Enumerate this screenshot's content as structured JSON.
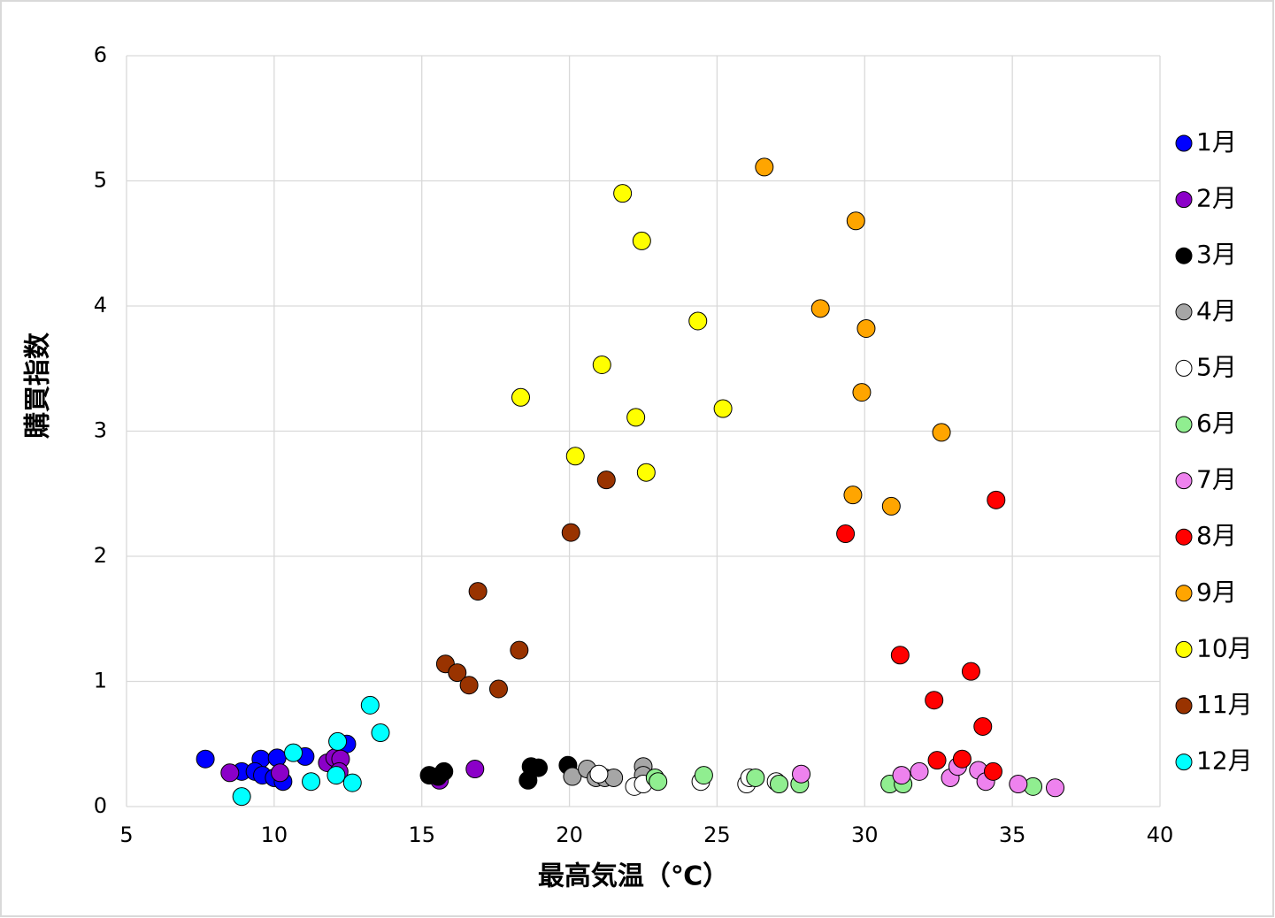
{
  "chart_data": {
    "type": "scatter",
    "x_label": "最高気温（℃）",
    "y_label": "購買指数",
    "xlim": [
      5,
      40
    ],
    "xticks": [
      5,
      10,
      15,
      20,
      25,
      30,
      35,
      40
    ],
    "ylim": [
      0,
      6
    ],
    "yticks": [
      0,
      1,
      2,
      3,
      4,
      5,
      6
    ],
    "grid": true,
    "legend": "right",
    "series": [
      {
        "name": "1月",
        "color": "#0000ff",
        "x": [
          7.67,
          8.9,
          9.55,
          9.35,
          9.6,
          10.1,
          10.0,
          10.3,
          11.05,
          12.46
        ],
        "values": [
          0.38,
          0.28,
          0.38,
          0.28,
          0.25,
          0.39,
          0.23,
          0.2,
          0.4,
          0.5
        ]
      },
      {
        "name": "2月",
        "color": "#8b00c8",
        "x": [
          8.5,
          10.2,
          11.8,
          12.05,
          12.25,
          12.2,
          15.6,
          16.8
        ],
        "values": [
          0.27,
          0.27,
          0.35,
          0.39,
          0.38,
          0.28,
          0.21,
          0.3
        ]
      },
      {
        "name": "3月",
        "color": "#000000",
        "x": [
          15.25,
          15.55,
          15.75,
          18.6,
          18.7,
          18.95,
          19.95
        ],
        "values": [
          0.25,
          0.24,
          0.28,
          0.21,
          0.32,
          0.31,
          0.33
        ]
      },
      {
        "name": "4月",
        "color": "#a6a6a6",
        "x": [
          20.1,
          20.6,
          20.9,
          21.2,
          21.5,
          22.5,
          22.5
        ],
        "values": [
          0.24,
          0.3,
          0.23,
          0.23,
          0.23,
          0.32,
          0.25
        ]
      },
      {
        "name": "5月",
        "color": "#ffffff",
        "x": [
          21.0,
          22.2,
          22.5,
          24.45,
          26.0,
          26.1,
          27.0
        ],
        "values": [
          0.26,
          0.16,
          0.18,
          0.2,
          0.18,
          0.23,
          0.2
        ]
      },
      {
        "name": "6月",
        "color": "#90ee90",
        "x": [
          22.9,
          23.0,
          24.55,
          26.3,
          27.1,
          27.8,
          30.85,
          31.3,
          35.7
        ],
        "values": [
          0.23,
          0.2,
          0.25,
          0.23,
          0.18,
          0.18,
          0.18,
          0.18,
          0.16
        ]
      },
      {
        "name": "7月",
        "color": "#ee82ee",
        "x": [
          27.85,
          31.25,
          31.85,
          32.9,
          33.15,
          33.85,
          34.1,
          35.2,
          36.45
        ],
        "values": [
          0.26,
          0.25,
          0.28,
          0.23,
          0.32,
          0.29,
          0.2,
          0.18,
          0.15
        ]
      },
      {
        "name": "8月",
        "color": "#ff0000",
        "x": [
          29.35,
          34.45,
          31.2,
          33.6,
          32.35,
          34.0,
          32.45,
          33.3,
          34.35
        ],
        "values": [
          2.18,
          2.45,
          1.21,
          1.08,
          0.85,
          0.64,
          0.37,
          0.38,
          0.28
        ]
      },
      {
        "name": "9月",
        "color": "#ffa500",
        "x": [
          26.6,
          29.7,
          28.5,
          30.05,
          29.9,
          32.6,
          29.6,
          30.9
        ],
        "values": [
          5.11,
          4.68,
          3.98,
          3.82,
          3.31,
          2.99,
          2.49,
          2.4
        ]
      },
      {
        "name": "10月",
        "color": "#ffff00",
        "x": [
          21.8,
          22.45,
          24.35,
          21.1,
          18.35,
          25.2,
          22.25,
          20.2,
          22.6
        ],
        "values": [
          4.9,
          4.52,
          3.88,
          3.53,
          3.27,
          3.18,
          3.11,
          2.8,
          2.67
        ]
      },
      {
        "name": "11月",
        "color": "#993300",
        "x": [
          21.25,
          20.05,
          16.9,
          18.3,
          15.8,
          16.2,
          16.6,
          17.6
        ],
        "values": [
          2.61,
          2.19,
          1.72,
          1.25,
          1.14,
          1.07,
          0.97,
          0.94
        ]
      },
      {
        "name": "12月",
        "color": "#00ffff",
        "x": [
          8.9,
          10.65,
          11.25,
          12.15,
          12.1,
          12.65,
          13.25,
          13.6
        ],
        "values": [
          0.08,
          0.43,
          0.2,
          0.52,
          0.25,
          0.19,
          0.81,
          0.59
        ]
      }
    ]
  }
}
